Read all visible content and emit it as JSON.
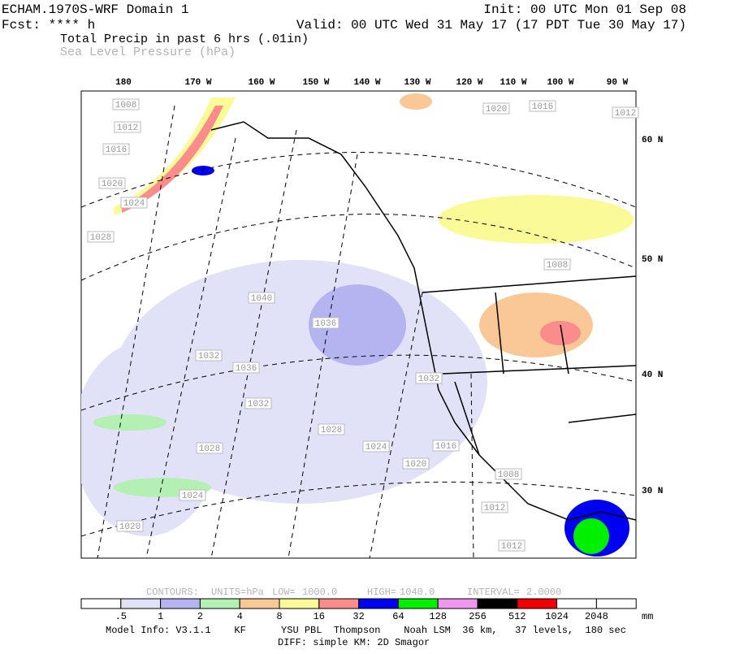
{
  "header": {
    "model": "ECHAM.1970S-WRF Domain 1",
    "init": "Init: 00 UTC Mon 01 Sep 08",
    "fcst": "Fcst: **** h",
    "valid": "Valid: 00 UTC Wed 31 May 17 (17 PDT Tue 30 May 17)",
    "field1": "Total Precip in past 6 hrs (.01in)",
    "field2": "Sea Level Pressure (hPa)"
  },
  "map": {
    "longitudes": [
      "180",
      "170 W",
      "160 W",
      "150 W",
      "140 W",
      "130 W",
      "120 W",
      "110 W",
      "100 W",
      "90 W"
    ],
    "latitudes": [
      "60 N",
      "50 N",
      "40 N",
      "30 N"
    ],
    "contour_labels": [
      "1008",
      "1012",
      "1016",
      "1020",
      "1024",
      "1028",
      "1040",
      "1036",
      "1032",
      "1036",
      "1032",
      "1028",
      "1024",
      "1016",
      "1020",
      "1028",
      "1024",
      "1020",
      "1020",
      "1016",
      "1012",
      "1008",
      "1032",
      "1008",
      "1012",
      "1012"
    ]
  },
  "contours": {
    "label": "CONTOURS:",
    "units": "UNITS=hPa",
    "low_label": "LOW=",
    "low": "1000.0",
    "high_label": "HIGH=",
    "high": "1040.0",
    "interval_label": "INTERVAL=",
    "interval": "2.0000"
  },
  "colorbar": {
    "labels": [
      ".5",
      "1",
      "2",
      "4",
      "8",
      "16",
      "32",
      "64",
      "128",
      "256",
      "512",
      "1024",
      "2048"
    ],
    "unit": "mm",
    "colors": [
      "#ffffff",
      "#e1e1f8",
      "#b4b4f0",
      "#b4f0b4",
      "#fac896",
      "#fafa96",
      "#fa8c8c",
      "#0000f0",
      "#00f000",
      "#f096f0",
      "#000000",
      "#f00000",
      "#ffffff",
      "#ffffff"
    ]
  },
  "footer": {
    "line1": "Model Info: V3.1.1    KF      YSU PBL  Thompson    Noah LSM  36 km,   37 levels,  180 sec",
    "line2": "DIFF: simple KM: 2D Smagor"
  }
}
